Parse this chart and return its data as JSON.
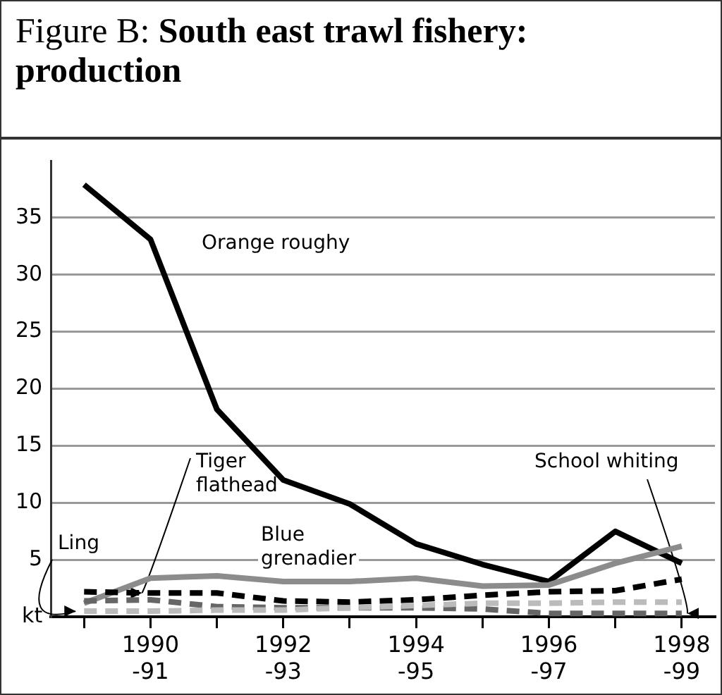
{
  "chart_data": {
    "type": "line",
    "title": "Figure B: South east trawl fishery: production",
    "categories": [
      null,
      "1990-91",
      null,
      "1992-93",
      null,
      "1994-95",
      null,
      "1996-97",
      null,
      "1998-99"
    ],
    "series": [
      {
        "name": "Orange roughy",
        "color": "#000000",
        "line_style": "solid",
        "values": [
          37.9,
          33.1,
          18.2,
          12.0,
          9.9,
          6.4,
          4.6,
          3.1,
          7.5,
          4.7
        ]
      },
      {
        "name": "Blue grenadier",
        "color": "#8c8c8c",
        "line_style": "solid",
        "values": [
          1.2,
          3.4,
          3.6,
          3.1,
          3.1,
          3.4,
          2.7,
          2.8,
          4.7,
          6.2
        ]
      },
      {
        "name": "Tiger flathead",
        "color": "#000000",
        "line_style": "dashed",
        "values": [
          2.2,
          2.1,
          2.1,
          1.4,
          1.3,
          1.5,
          1.9,
          2.2,
          2.3,
          3.3
        ]
      },
      {
        "name": "School whiting",
        "color": "#666666",
        "line_style": "dashed",
        "values": [
          1.4,
          1.5,
          0.9,
          0.8,
          0.8,
          0.8,
          0.7,
          0.3,
          0.3,
          0.3
        ]
      },
      {
        "name": "Ling",
        "color": "#bbbbbb",
        "line_style": "dashed",
        "values": [
          0.5,
          0.5,
          0.6,
          0.6,
          0.8,
          1.0,
          1.2,
          1.2,
          1.3,
          1.3
        ]
      }
    ],
    "ylim": [
      0,
      40
    ],
    "yticks": [
      {
        "value": 0,
        "label": "kt"
      },
      5,
      10,
      15,
      20,
      25,
      30,
      35
    ],
    "grid": "y",
    "legend": false,
    "marker": "none"
  }
}
